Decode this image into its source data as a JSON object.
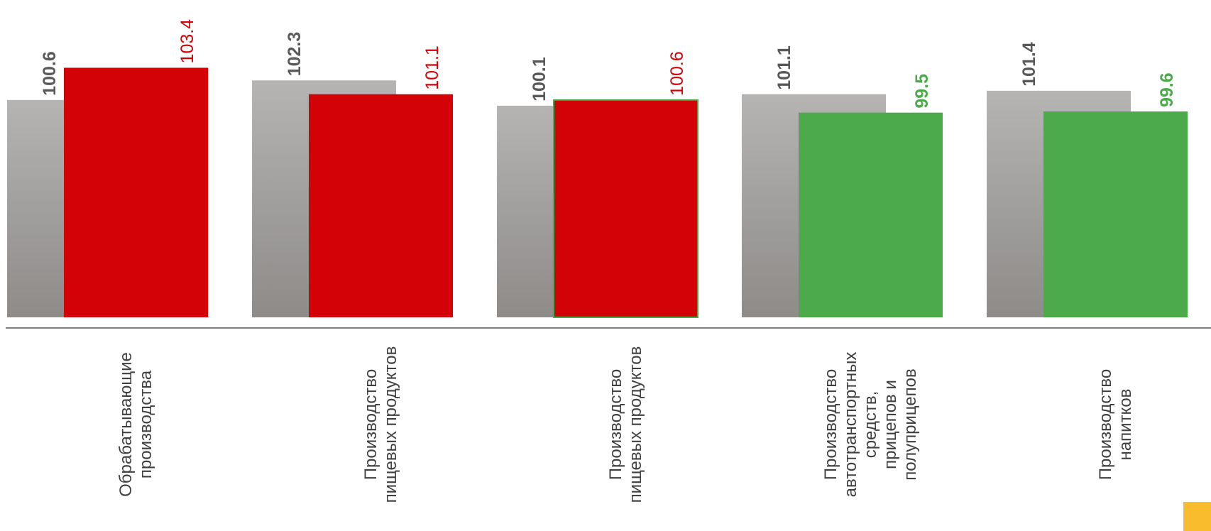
{
  "colors": {
    "gray_top": "#b5b4b3",
    "gray_bottom": "#8e8b89",
    "red": "#d20206",
    "green": "#4caa4b",
    "gray_label": "#595959",
    "axis": "#7f7f7f",
    "text": "#404040",
    "badge": "#f9bc2c"
  },
  "chart_data": {
    "type": "bar",
    "categories": [
      [
        "Обрабатывающие",
        "производства"
      ],
      [
        "Производство",
        "пищевых продуктов"
      ],
      [
        "Производство",
        "пищевых продуктов"
      ],
      [
        "Производство",
        "автотранспортных",
        "средств,",
        "прицепов и",
        "полуприцепов"
      ],
      [
        "Производство",
        "напитков"
      ]
    ],
    "series": [
      {
        "values": [
          100.6,
          102.3,
          100.1,
          101.1,
          101.4
        ],
        "labels": [
          "100.6",
          "102.3",
          "100.1",
          "101.1",
          "101.4"
        ],
        "color": "gray-gradient"
      },
      {
        "values": [
          103.4,
          101.1,
          100.6,
          99.5,
          99.6
        ],
        "labels": [
          "103.4",
          "101.1",
          "100.6",
          "99.5",
          "99.6"
        ],
        "colors": [
          "red",
          "red",
          "red",
          "green",
          "green"
        ]
      }
    ],
    "ylim": [
      81.7,
      103.8
    ],
    "grid": false,
    "legend": "none"
  }
}
